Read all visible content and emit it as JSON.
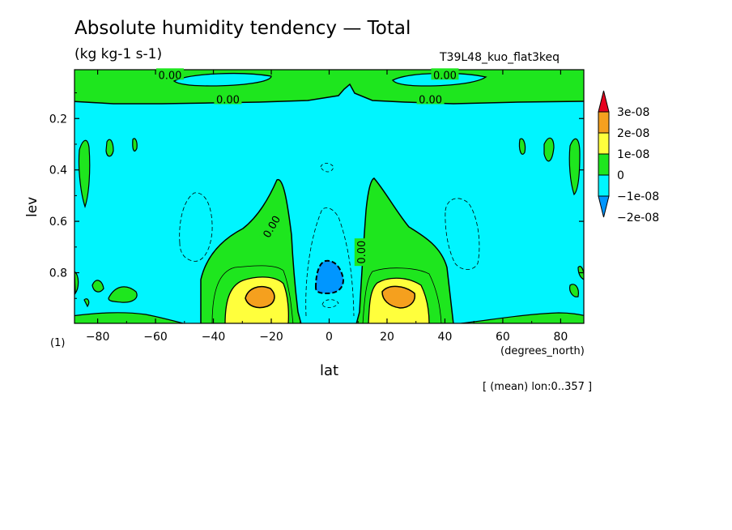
{
  "chart_data": {
    "type": "heatmap",
    "title": "Absolute humidity tendency — Total",
    "units": "(kg kg-1 s-1)",
    "run_label": "T39L48_kuo_flat3keq",
    "xlabel": "lat",
    "x_unit": "(degrees_north)",
    "ylabel": "lev",
    "axis_number": "(1)",
    "note": "[ (mean) lon:0..357 ]",
    "xlim": [
      -88,
      88
    ],
    "ylim": [
      0.01,
      0.997
    ],
    "y_inverted": true,
    "x_ticks": [
      -80,
      -60,
      -40,
      -20,
      0,
      20,
      40,
      60,
      80
    ],
    "x_tick_labels": [
      "−80",
      "−60",
      "−40",
      "−20",
      "0",
      "20",
      "40",
      "60",
      "80"
    ],
    "y_ticks": [
      0.2,
      0.4,
      0.6,
      0.8
    ],
    "y_tick_labels": [
      "0.2",
      "0.4",
      "0.6",
      "0.8"
    ],
    "contour_labels": [
      {
        "text": "0.00",
        "lat": -55,
        "lev": 0.03
      },
      {
        "text": "0.00",
        "lat": 40,
        "lev": 0.03
      },
      {
        "text": "0.00",
        "lat": -35,
        "lev": 0.125
      },
      {
        "text": "0.00",
        "lat": 35,
        "lev": 0.125
      },
      {
        "text": "0.00",
        "lat": -20,
        "lev": 0.62
      },
      {
        "text": "0.00",
        "lat": 11,
        "lev": 0.72
      }
    ],
    "legend": {
      "levels": [
        "3e-08",
        "2e-08",
        "1e-08",
        "0",
        "−1e-08",
        "−2e-08"
      ],
      "colors": [
        "#e6001e",
        "#f5a01e",
        "#ffff3c",
        "#1ee61e",
        "#00f5ff",
        "#0096ff"
      ]
    },
    "regions": {
      "background": {
        "value": "-1e-08..0",
        "color": "#00f5ff"
      },
      "top_band": {
        "value": "0..1e-08",
        "color": "#1ee61e",
        "lev_range": [
          0.01,
          0.13
        ]
      },
      "upper_jets": [
        {
          "value": "-1e-08..0",
          "lat_range": [
            -60,
            -30
          ],
          "lev": 0.035
        },
        {
          "value": "-1e-08..0",
          "lat_range": [
            28,
            60
          ],
          "lev": 0.035
        }
      ],
      "convective_towers": [
        {
          "value": "0..1e-08",
          "lat_range": [
            -44,
            -6
          ],
          "lev_top": 0.42
        },
        {
          "value": "0..1e-08",
          "lat_range": [
            6,
            45
          ],
          "lev_top": 0.42
        }
      ],
      "maxima": [
        {
          "value": "2e-08..3e-08",
          "lat": -24,
          "lev": 0.9
        },
        {
          "value": "2e-08..3e-08",
          "lat": 24,
          "lev": 0.9
        }
      ],
      "minimum": {
        "value": "-2e-08..-1e-08",
        "lat": 0,
        "lev": 0.81
      }
    }
  }
}
